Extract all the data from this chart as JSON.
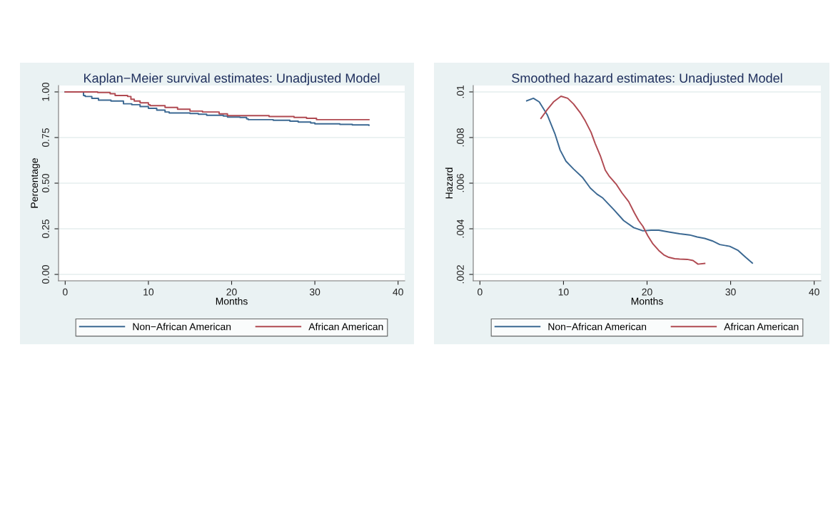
{
  "chart_data": [
    {
      "type": "step",
      "title": "Kaplan−Meier survival estimates: Unadjusted Model",
      "xlabel": "Months",
      "ylabel": "Percentage",
      "xlim": [
        -0.8,
        40.8
      ],
      "xticks": [
        0,
        10,
        20,
        30,
        40
      ],
      "ylim": [
        -0.035,
        1.035
      ],
      "yticks": [
        {
          "value": 0,
          "label": "0.00"
        },
        {
          "value": 0.25,
          "label": "0.25"
        },
        {
          "value": 0.5,
          "label": "0.50"
        },
        {
          "value": 0.75,
          "label": "0.75"
        },
        {
          "value": 1,
          "label": "1.00"
        }
      ],
      "grid": "y",
      "legend": "bottom",
      "line_style": "solid",
      "marker": "none",
      "series": [
        {
          "name": "Non−African American",
          "color": "#3b6892",
          "x": [
            0,
            2.2,
            2.4,
            3.2,
            4,
            5.5,
            7,
            8,
            9,
            10,
            11,
            12,
            12.5,
            15,
            16,
            17,
            19,
            19.5,
            21,
            21.8,
            22,
            25,
            27,
            28,
            29.5,
            30,
            33,
            34.5,
            36.5
          ],
          "values": [
            1.0,
            0.98,
            0.975,
            0.965,
            0.955,
            0.95,
            0.935,
            0.93,
            0.92,
            0.91,
            0.9,
            0.89,
            0.885,
            0.882,
            0.878,
            0.872,
            0.868,
            0.862,
            0.86,
            0.852,
            0.848,
            0.845,
            0.84,
            0.835,
            0.83,
            0.825,
            0.822,
            0.819,
            0.817
          ]
        },
        {
          "name": "African American",
          "color": "#b04a52",
          "x": [
            0,
            3.9,
            5.4,
            6,
            7.5,
            7.9,
            8.3,
            9,
            10,
            10.2,
            12,
            13.5,
            15,
            16.5,
            18.5,
            19.5,
            24.5,
            27.5,
            29,
            30.2,
            36.5
          ],
          "values": [
            1.0,
            0.997,
            0.99,
            0.98,
            0.975,
            0.96,
            0.95,
            0.94,
            0.93,
            0.925,
            0.915,
            0.905,
            0.895,
            0.89,
            0.88,
            0.87,
            0.865,
            0.86,
            0.855,
            0.848,
            0.848
          ]
        }
      ]
    },
    {
      "type": "line",
      "title": "Smoothed hazard estimates: Unadjusted Model",
      "xlabel": "Months",
      "ylabel": "Hazard",
      "xlim": [
        -0.8,
        40.8
      ],
      "xticks": [
        0,
        10,
        20,
        30,
        40
      ],
      "ylim": [
        0.00172,
        0.01028
      ],
      "yticks": [
        {
          "value": 0.002,
          "label": ".002"
        },
        {
          "value": 0.004,
          "label": ".004"
        },
        {
          "value": 0.006,
          "label": ".006"
        },
        {
          "value": 0.008,
          "label": ".008"
        },
        {
          "value": 0.01,
          "label": ".01"
        }
      ],
      "grid": "y",
      "legend": "bottom",
      "line_style": "solid",
      "marker": "none",
      "series": [
        {
          "name": "Non−African American",
          "color": "#3b6892",
          "x": [
            5.6,
            6.4,
            7.1,
            8.05,
            8.97,
            9.6,
            10.3,
            11.2,
            12.3,
            13.2,
            14.0,
            14.7,
            16.0,
            17.2,
            18.4,
            19.5,
            20.5,
            21.4,
            22.6,
            23.9,
            25.1,
            26.0,
            26.9,
            27.8,
            28.7,
            29.9,
            30.9,
            31.8,
            32.6
          ],
          "values": [
            0.00961,
            0.00972,
            0.00956,
            0.009,
            0.00817,
            0.00745,
            0.00696,
            0.00662,
            0.00624,
            0.00579,
            0.00552,
            0.00535,
            0.00485,
            0.00436,
            0.00405,
            0.00391,
            0.00394,
            0.00394,
            0.00386,
            0.00378,
            0.00373,
            0.00364,
            0.00358,
            0.00347,
            0.00331,
            0.00323,
            0.00305,
            0.00275,
            0.0025
          ]
        },
        {
          "name": "African American",
          "color": "#b04a52",
          "x": [
            7.3,
            8.05,
            8.8,
            9.7,
            10.5,
            11.2,
            12.0,
            12.6,
            13.3,
            13.8,
            14.4,
            15.0,
            15.5,
            16.3,
            17.0,
            17.8,
            18.5,
            19.0,
            19.5,
            20.1,
            20.7,
            21.4,
            22.0,
            22.6,
            23.3,
            23.9,
            24.8,
            25.5,
            26.1,
            26.9
          ],
          "values": [
            0.00884,
            0.00922,
            0.00956,
            0.00981,
            0.00972,
            0.00947,
            0.00909,
            0.00873,
            0.00823,
            0.00773,
            0.00721,
            0.00657,
            0.00629,
            0.00596,
            0.00557,
            0.00519,
            0.00469,
            0.00436,
            0.00411,
            0.00369,
            0.00334,
            0.00305,
            0.00286,
            0.00275,
            0.00269,
            0.00267,
            0.00266,
            0.00261,
            0.00245,
            0.00248
          ]
        }
      ]
    }
  ]
}
